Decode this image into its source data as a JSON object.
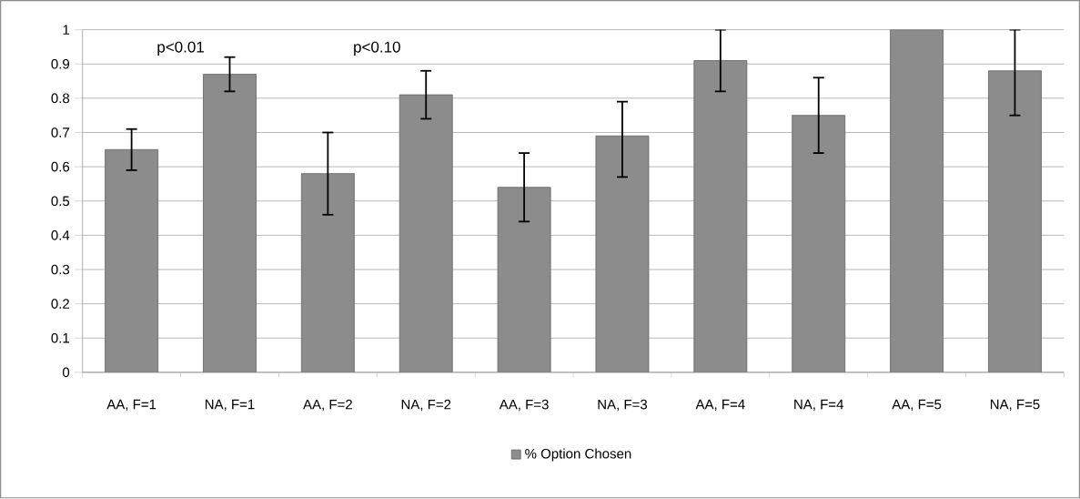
{
  "chart_data": {
    "type": "bar",
    "categories": [
      "AA, F=1",
      "NA, F=1",
      "AA, F=2",
      "NA, F=2",
      "AA, F=3",
      "NA, F=3",
      "AA, F=4",
      "NA, F=4",
      "AA, F=5",
      "NA, F=5"
    ],
    "series": [
      {
        "name": "% Option Chosen",
        "color": "#8c8c8c",
        "values": [
          0.65,
          0.87,
          0.58,
          0.81,
          0.54,
          0.69,
          0.91,
          0.75,
          1.0,
          0.88
        ],
        "errors": [
          [
            0.59,
            0.71
          ],
          [
            0.82,
            0.92
          ],
          [
            0.46,
            0.7
          ],
          [
            0.74,
            0.88
          ],
          [
            0.44,
            0.64
          ],
          [
            0.57,
            0.79
          ],
          [
            0.82,
            1.0
          ],
          [
            0.64,
            0.86
          ],
          null,
          [
            0.75,
            1.0
          ]
        ]
      }
    ],
    "ylim": [
      0,
      1
    ],
    "yticks": [
      0,
      0.1,
      0.2,
      0.3,
      0.4,
      0.5,
      0.6,
      0.7,
      0.8,
      0.9,
      1
    ],
    "grid": "y",
    "legend": "bottom",
    "annotations": [
      "p<0.01",
      "p<0.10"
    ]
  }
}
